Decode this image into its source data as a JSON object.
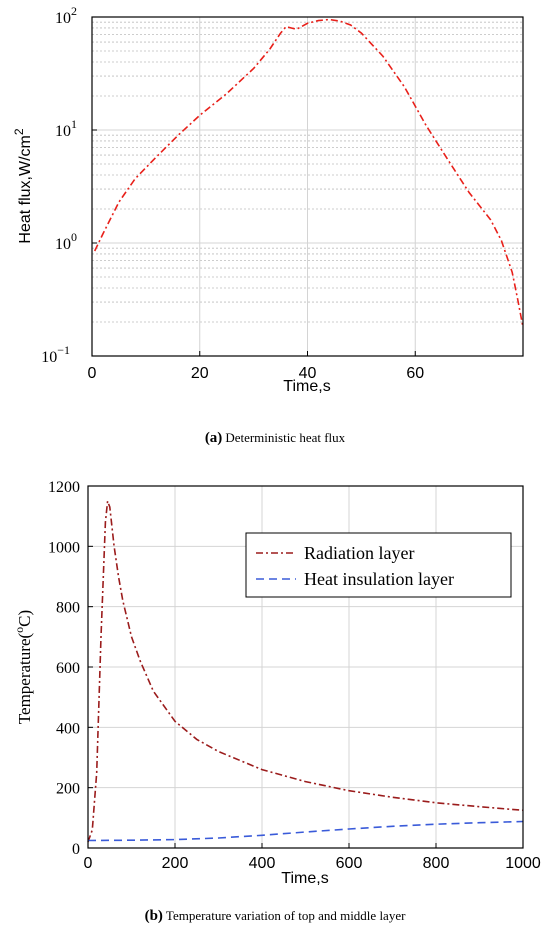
{
  "chart_data": [
    {
      "type": "line",
      "yscale": "log",
      "xlabel": "Time,s",
      "ylabel_main": "Heat flux,W/cm",
      "ylabel_sup": "2",
      "xlim": [
        0,
        80
      ],
      "ylim": [
        0.1,
        100
      ],
      "xticks": [
        "0",
        "20",
        "40",
        "60"
      ],
      "yticks": [
        {
          "base": "10",
          "exp": "−1"
        },
        {
          "base": "10",
          "exp": "0"
        },
        {
          "base": "10",
          "exp": "1"
        },
        {
          "base": "10",
          "exp": "2"
        }
      ],
      "grid": true,
      "caption_label": "(a)",
      "caption_text": "Deterministic heat flux",
      "series": [
        {
          "color": "#e8201a",
          "style": "dashdot",
          "x": [
            0.5,
            2,
            5,
            8,
            12,
            16,
            20,
            25,
            30,
            33,
            35,
            36,
            37,
            38,
            40,
            42,
            44,
            46,
            48,
            50,
            54,
            58,
            62,
            66,
            70,
            74,
            76,
            78,
            79,
            80
          ],
          "y": [
            0.85,
            1.2,
            2.3,
            3.7,
            5.8,
            9.0,
            13.5,
            21,
            35,
            52,
            72,
            82,
            80,
            78,
            88,
            93,
            95,
            92,
            85,
            72,
            45,
            24,
            11,
            5.5,
            2.8,
            1.6,
            1.05,
            0.55,
            0.32,
            0.18
          ]
        }
      ]
    },
    {
      "type": "line",
      "xlabel": "Time,s",
      "ylabel_main": "Temperature(",
      "ylabel_sup": "o",
      "ylabel_end": "C)",
      "xlim": [
        0,
        1000
      ],
      "ylim": [
        0,
        1200
      ],
      "xticks": [
        "0",
        "200",
        "400",
        "600",
        "800",
        "1000"
      ],
      "yticks": [
        "0",
        "200",
        "400",
        "600",
        "800",
        "1000",
        "1200"
      ],
      "grid": true,
      "legend": "top-right",
      "caption_label": "(b)",
      "caption_text": "Temperature variation of top and middle layer",
      "series": [
        {
          "name": "Radiation layer",
          "color": "#9b1c1c",
          "style": "dashdot",
          "x": [
            0,
            10,
            20,
            30,
            40,
            45,
            50,
            60,
            70,
            80,
            100,
            120,
            150,
            200,
            250,
            300,
            400,
            500,
            600,
            700,
            800,
            900,
            1000
          ],
          "y": [
            20,
            60,
            250,
            700,
            1080,
            1150,
            1130,
            1000,
            900,
            820,
            700,
            620,
            520,
            420,
            360,
            320,
            260,
            220,
            190,
            168,
            150,
            137,
            125
          ]
        },
        {
          "name": "Heat insulation layer",
          "color": "#3a5bd9",
          "style": "dashed",
          "x": [
            0,
            100,
            200,
            300,
            400,
            500,
            600,
            700,
            800,
            900,
            1000
          ],
          "y": [
            25,
            26,
            28,
            33,
            42,
            53,
            63,
            72,
            79,
            84,
            88
          ]
        }
      ]
    }
  ]
}
